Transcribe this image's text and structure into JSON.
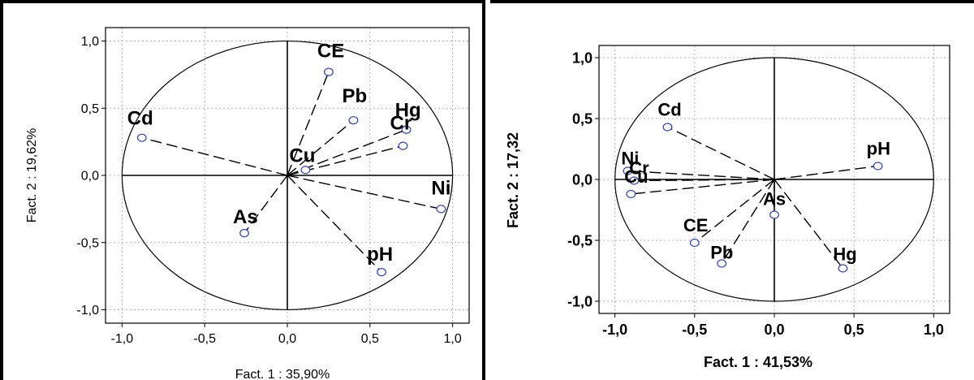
{
  "chart_data": [
    {
      "type": "scatter",
      "title": "",
      "xlabel": "Fact. 1  : 35,90%",
      "ylabel": "Fact. 2  : 19,62%",
      "xlim": [
        -1.1,
        1.1
      ],
      "ylim": [
        -1.1,
        1.1
      ],
      "xticks": [
        "-1,0",
        "-0,5",
        "0,0",
        "0,5",
        "1,0"
      ],
      "yticks": [
        "1,0",
        "0,5",
        "0,0",
        "-0,5",
        "-1,0"
      ],
      "grid": true,
      "unit_circle": true,
      "points": [
        {
          "label": "CE",
          "x": 0.25,
          "y": 0.77
        },
        {
          "label": "Pb",
          "x": 0.4,
          "y": 0.41
        },
        {
          "label": "Hg",
          "x": 0.72,
          "y": 0.34
        },
        {
          "label": "Cr",
          "x": 0.7,
          "y": 0.22
        },
        {
          "label": "Cu",
          "x": 0.11,
          "y": 0.04
        },
        {
          "label": "Cd",
          "x": -0.88,
          "y": 0.28
        },
        {
          "label": "Ni",
          "x": 0.93,
          "y": -0.25
        },
        {
          "label": "As",
          "x": -0.26,
          "y": -0.43
        },
        {
          "label": "pH",
          "x": 0.57,
          "y": -0.72
        }
      ]
    },
    {
      "type": "scatter",
      "title": "",
      "xlabel": "Fact. 1  : 41,53%",
      "ylabel": "Fact. 2 : 17,32",
      "xlim": [
        -1.1,
        1.1
      ],
      "ylim": [
        -1.1,
        1.1
      ],
      "xticks": [
        "-1,0",
        "-0,5",
        "0,0",
        "0,5",
        "1,0"
      ],
      "yticks": [
        "1,0",
        "0,5",
        "0,0",
        "-0,5",
        "-1,0"
      ],
      "grid": true,
      "unit_circle": true,
      "points": [
        {
          "label": "Cd",
          "x": -0.67,
          "y": 0.43
        },
        {
          "label": "pH",
          "x": 0.65,
          "y": 0.11
        },
        {
          "label": "Ni",
          "x": -0.92,
          "y": 0.07
        },
        {
          "label": "Cr",
          "x": -0.88,
          "y": -0.01
        },
        {
          "label": "Cu",
          "x": -0.9,
          "y": -0.12
        },
        {
          "label": "As",
          "x": 0.0,
          "y": -0.29
        },
        {
          "label": "CE",
          "x": -0.5,
          "y": -0.52
        },
        {
          "label": "Pb",
          "x": -0.33,
          "y": -0.69
        },
        {
          "label": "Hg",
          "x": 0.43,
          "y": -0.73
        }
      ]
    }
  ]
}
